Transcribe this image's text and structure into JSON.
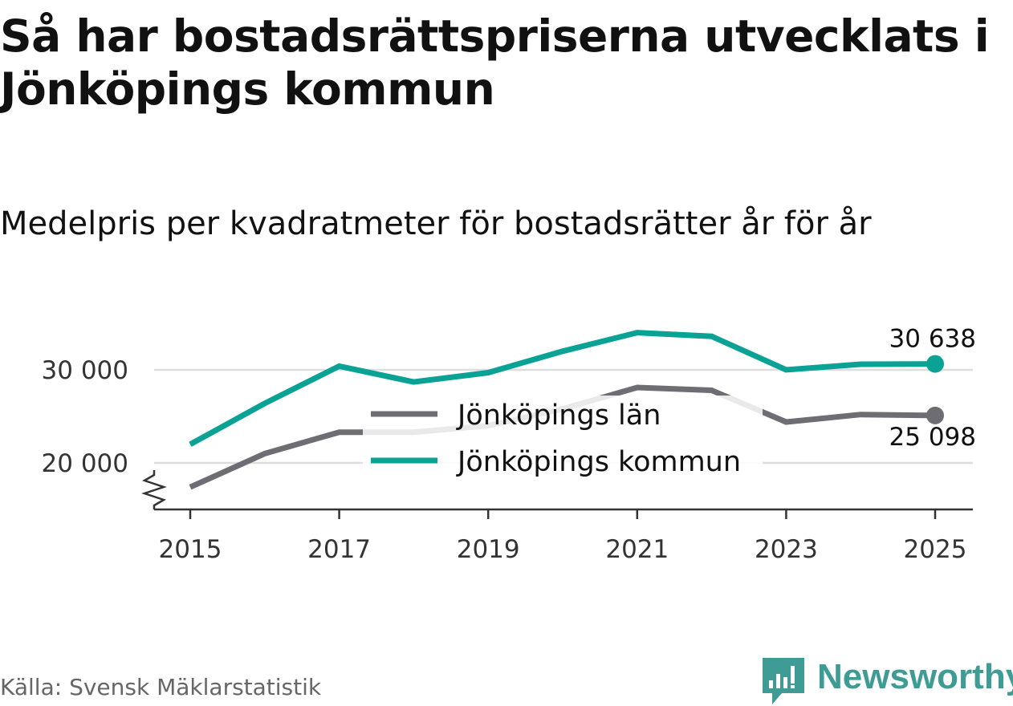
{
  "title": "Så har bostadsrättspriserna utvecklats i Jönköpings kommun",
  "subtitle": "Medelpris per kvadratmeter för bostadsrätter år för år",
  "source": "Källa: Svensk Mäklarstatistik",
  "brand": {
    "name": "Newsworthy",
    "color": "#3f9c94",
    "icon": "newsworthy-logo-icon"
  },
  "chart_data": {
    "type": "line",
    "title": "Så har bostadsrättspriserna utvecklats i Jönköpings kommun",
    "subtitle": "Medelpris per kvadratmeter för bostadsrätter år för år",
    "xlabel": "",
    "ylabel": "",
    "x": [
      2015,
      2016,
      2017,
      2018,
      2019,
      2020,
      2021,
      2022,
      2023,
      2024,
      2025
    ],
    "xticks": [
      2015,
      2017,
      2019,
      2021,
      2023,
      2025
    ],
    "xtick_labels": [
      "2015",
      "2017",
      "2019",
      "2021",
      "2023",
      "2025"
    ],
    "yticks": [
      20000,
      30000
    ],
    "ytick_labels": [
      "20 000",
      "30 000"
    ],
    "ylim": [
      15000,
      35000
    ],
    "y_axis_break": true,
    "grid": true,
    "legend_position": "center",
    "series": [
      {
        "name": "Jönköpings län",
        "color": "#6e6d73",
        "values": [
          17400,
          21000,
          23300,
          23300,
          24000,
          25800,
          28100,
          27800,
          24400,
          25200,
          25098
        ],
        "end_label": "25 098"
      },
      {
        "name": "Jönköpings kommun",
        "color": "#0aa294",
        "values": [
          22000,
          26400,
          30400,
          28700,
          29700,
          32000,
          34000,
          33600,
          30000,
          30600,
          30638
        ],
        "end_label": "30 638"
      }
    ],
    "gridline_color": "#dddddd",
    "axis_color": "#333333"
  }
}
